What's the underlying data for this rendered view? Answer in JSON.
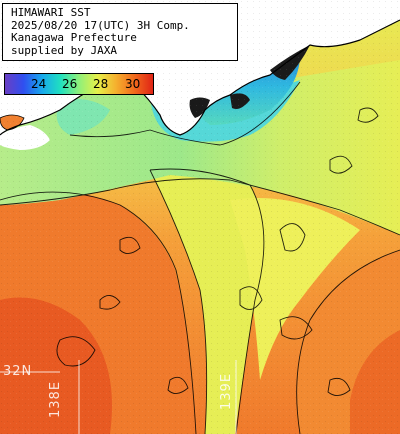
{
  "caption": {
    "line1": "HIMAWARI SST",
    "line2": "2025/08/20 17(UTC) 3H Comp.",
    "line3": "Kanagawa Prefecture",
    "line4": "supplied by JAXA"
  },
  "legend": {
    "ticks": [
      "24",
      "26",
      "28",
      "30"
    ],
    "colors": [
      "#6a3fc4",
      "#2f4ff0",
      "#18a8ec",
      "#20e0c0",
      "#8ff07a",
      "#e6f04a",
      "#f5b02e",
      "#f26a1c",
      "#e02416"
    ]
  },
  "grid_labels": {
    "lon_138": "138E",
    "lon_139": "139E",
    "lat_32": "32N"
  },
  "colors": {
    "land": "#ffffff",
    "coast": "#000000",
    "warm": "#f07a2c",
    "hot": "#e85520",
    "mid": "#f5b53a",
    "yellow": "#e6ee55",
    "green": "#9de88a",
    "cyan": "#55d8d8",
    "teal": "#2fb8e0",
    "blue": "#2a8ad8"
  }
}
